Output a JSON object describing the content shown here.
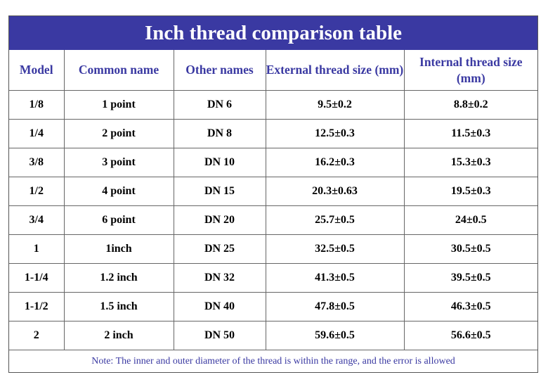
{
  "title": "Inch thread comparison table",
  "headers": {
    "model": "Model",
    "common_name": "Common name",
    "other_names": "Other names",
    "external": "External thread size (mm)",
    "internal": "Internal thread size (mm)"
  },
  "rows": [
    {
      "model": "1/8",
      "common": "1 point",
      "other": "DN 6",
      "external": "9.5±0.2",
      "internal": "8.8±0.2"
    },
    {
      "model": "1/4",
      "common": "2 point",
      "other": "DN 8",
      "external": "12.5±0.3",
      "internal": "11.5±0.3"
    },
    {
      "model": "3/8",
      "common": "3 point",
      "other": "DN 10",
      "external": "16.2±0.3",
      "internal": "15.3±0.3"
    },
    {
      "model": "1/2",
      "common": "4 point",
      "other": "DN 15",
      "external": "20.3±0.63",
      "internal": "19.5±0.3"
    },
    {
      "model": "3/4",
      "common": "6 point",
      "other": "DN 20",
      "external": "25.7±0.5",
      "internal": "24±0.5"
    },
    {
      "model": "1",
      "common": "1inch",
      "other": "DN 25",
      "external": "32.5±0.5",
      "internal": "30.5±0.5"
    },
    {
      "model": "1-1/4",
      "common": "1.2 inch",
      "other": "DN 32",
      "external": "41.3±0.5",
      "internal": "39.5±0.5"
    },
    {
      "model": "1-1/2",
      "common": "1.5 inch",
      "other": "DN 40",
      "external": "47.8±0.5",
      "internal": "46.3±0.5"
    },
    {
      "model": "2",
      "common": "2 inch",
      "other": "DN 50",
      "external": "59.6±0.5",
      "internal": "56.6±0.5"
    }
  ],
  "note": "Note: The inner and outer diameter of the thread is within the range, and the error is allowed",
  "colors": {
    "header_bg": "#3a39a2",
    "header_text": "#3a39a2",
    "title_text": "#ffffff",
    "border": "#666666"
  }
}
